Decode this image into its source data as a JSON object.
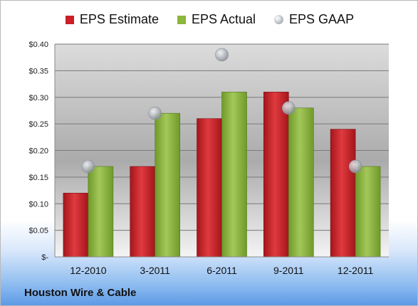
{
  "company_label": "Houston Wire & Cable",
  "chart_data": {
    "type": "bar",
    "categories": [
      "12-2010",
      "3-2011",
      "6-2011",
      "9-2011",
      "12-2011"
    ],
    "series": [
      {
        "name": "EPS Estimate",
        "kind": "bar",
        "color": "#cc1f26",
        "values": [
          0.12,
          0.17,
          0.26,
          0.31,
          0.24
        ]
      },
      {
        "name": "EPS Actual",
        "kind": "bar",
        "color": "#8cb63c",
        "values": [
          0.17,
          0.27,
          0.31,
          0.28,
          0.17
        ]
      },
      {
        "name": "EPS GAAP",
        "kind": "marker",
        "color": "#b8bcc4",
        "values": [
          0.17,
          0.27,
          0.38,
          0.28,
          0.17
        ]
      }
    ],
    "y_ticks": [
      "$-",
      "$0.05",
      "$0.10",
      "$0.15",
      "$0.20",
      "$0.25",
      "$0.30",
      "$0.35",
      "$0.40"
    ],
    "ylim": [
      0,
      0.4
    ],
    "grid": true,
    "legend": "top"
  }
}
